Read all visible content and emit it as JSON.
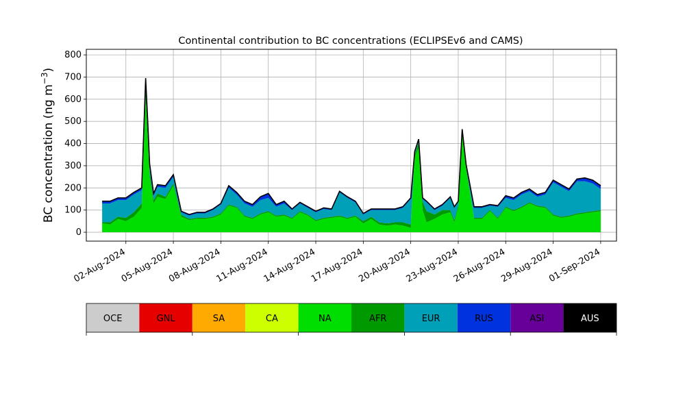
{
  "chart_data": {
    "type": "area",
    "stacked": true,
    "title": "Continental contribution to BC concentrations (ECLIPSEv6 and CAMS)",
    "ylabel": "BC concentration (ng m",
    "ylabel_sup": "−3",
    "ylabel_close": ")",
    "xlabel": "",
    "ylim": [
      -40,
      825
    ],
    "yticks": [
      0,
      100,
      200,
      300,
      400,
      500,
      600,
      700,
      800
    ],
    "xlim": [
      "2024-07-30T12:00",
      "2024-09-02T00:00"
    ],
    "x_ticks": [
      "2024-08-02",
      "2024-08-05",
      "2024-08-08",
      "2024-08-11",
      "2024-08-14",
      "2024-08-17",
      "2024-08-20",
      "2024-08-23",
      "2024-08-26",
      "2024-08-29",
      "2024-09-01"
    ],
    "x_tick_labels": [
      "02-Aug-2024",
      "05-Aug-2024",
      "08-Aug-2024",
      "11-Aug-2024",
      "14-Aug-2024",
      "17-Aug-2024",
      "20-Aug-2024",
      "23-Aug-2024",
      "26-Aug-2024",
      "29-Aug-2024",
      "01-Sep-2024"
    ],
    "grid": true,
    "x": [
      "2024-07-31T12:00",
      "2024-08-01T00:00",
      "2024-08-01T12:00",
      "2024-08-02T00:00",
      "2024-08-02T12:00",
      "2024-08-03T00:00",
      "2024-08-03T06:00",
      "2024-08-03T09:00",
      "2024-08-03T12:00",
      "2024-08-03T18:00",
      "2024-08-04T00:00",
      "2024-08-04T12:00",
      "2024-08-05T00:00",
      "2024-08-05T12:00",
      "2024-08-06T00:00",
      "2024-08-06T12:00",
      "2024-08-07T00:00",
      "2024-08-07T12:00",
      "2024-08-08T00:00",
      "2024-08-08T12:00",
      "2024-08-09T00:00",
      "2024-08-09T12:00",
      "2024-08-10T00:00",
      "2024-08-10T12:00",
      "2024-08-11T00:00",
      "2024-08-11T12:00",
      "2024-08-12T00:00",
      "2024-08-12T12:00",
      "2024-08-13T00:00",
      "2024-08-13T12:00",
      "2024-08-14T00:00",
      "2024-08-14T12:00",
      "2024-08-15T00:00",
      "2024-08-15T12:00",
      "2024-08-16T00:00",
      "2024-08-16T12:00",
      "2024-08-17T00:00",
      "2024-08-17T12:00",
      "2024-08-18T00:00",
      "2024-08-18T12:00",
      "2024-08-19T00:00",
      "2024-08-19T12:00",
      "2024-08-20T00:00",
      "2024-08-20T06:00",
      "2024-08-20T12:00",
      "2024-08-20T18:00",
      "2024-08-21T00:00",
      "2024-08-21T12:00",
      "2024-08-22T00:00",
      "2024-08-22T12:00",
      "2024-08-22T18:00",
      "2024-08-23T00:00",
      "2024-08-23T06:00",
      "2024-08-23T12:00",
      "2024-08-24T00:00",
      "2024-08-24T12:00",
      "2024-08-25T00:00",
      "2024-08-25T12:00",
      "2024-08-26T00:00",
      "2024-08-26T12:00",
      "2024-08-27T00:00",
      "2024-08-27T12:00",
      "2024-08-28T00:00",
      "2024-08-28T12:00",
      "2024-08-29T00:00",
      "2024-08-29T12:00",
      "2024-08-30T00:00",
      "2024-08-30T12:00",
      "2024-08-31T00:00",
      "2024-08-31T12:00",
      "2024-09-01T00:00"
    ],
    "series": [
      {
        "name": "OCE",
        "color": "#cccccc",
        "values": [
          0,
          0,
          0,
          0,
          0,
          0,
          0,
          0,
          0,
          0,
          0,
          0,
          0,
          0,
          0,
          0,
          0,
          0,
          0,
          0,
          0,
          0,
          0,
          0,
          0,
          0,
          0,
          0,
          0,
          0,
          0,
          0,
          0,
          0,
          0,
          0,
          0,
          0,
          0,
          0,
          0,
          0,
          0,
          0,
          0,
          0,
          0,
          0,
          0,
          0,
          0,
          0,
          0,
          0,
          0,
          0,
          0,
          0,
          0,
          0,
          0,
          0,
          0,
          0,
          0,
          0,
          0,
          0,
          0,
          0,
          0
        ]
      },
      {
        "name": "GNL",
        "color": "#e60000",
        "values": [
          0,
          0,
          0,
          0,
          0,
          0,
          0,
          0,
          0,
          0,
          0,
          0,
          0,
          0,
          0,
          0,
          0,
          0,
          0,
          0,
          0,
          0,
          0,
          0,
          0,
          0,
          0,
          0,
          0,
          0,
          0,
          0,
          0,
          0,
          0,
          0,
          0,
          0,
          0,
          0,
          0,
          0,
          0,
          0,
          0,
          0,
          0,
          0,
          0,
          0,
          0,
          0,
          0,
          0,
          0,
          0,
          0,
          0,
          0,
          0,
          0,
          0,
          0,
          0,
          0,
          0,
          0,
          0,
          0,
          0,
          0
        ]
      },
      {
        "name": "SA",
        "color": "#ffaa00",
        "values": [
          0,
          0,
          0,
          0,
          0,
          0,
          0,
          0,
          0,
          0,
          0,
          0,
          0,
          0,
          0,
          0,
          0,
          0,
          0,
          0,
          0,
          0,
          0,
          0,
          0,
          0,
          0,
          0,
          0,
          0,
          0,
          0,
          0,
          0,
          0,
          0,
          0,
          0,
          0,
          0,
          0,
          0,
          0,
          0,
          0,
          0,
          0,
          0,
          0,
          0,
          0,
          0,
          0,
          0,
          0,
          0,
          0,
          0,
          0,
          0,
          0,
          0,
          0,
          0,
          0,
          0,
          0,
          0,
          0,
          0,
          0
        ]
      },
      {
        "name": "CA",
        "color": "#ccff00",
        "values": [
          0,
          0,
          0,
          0,
          0,
          0,
          0,
          0,
          0,
          0,
          0,
          0,
          0,
          0,
          0,
          0,
          0,
          0,
          0,
          0,
          0,
          0,
          0,
          0,
          0,
          0,
          0,
          0,
          0,
          0,
          0,
          0,
          0,
          0,
          0,
          0,
          0,
          0,
          0,
          0,
          0,
          0,
          0,
          0,
          0,
          0,
          0,
          0,
          0,
          0,
          0,
          0,
          0,
          0,
          0,
          0,
          0,
          0,
          0,
          0,
          0,
          0,
          0,
          0,
          0,
          0,
          0,
          0,
          0,
          0,
          0
        ]
      },
      {
        "name": "NA",
        "color": "#00dd00",
        "values": [
          40,
          35,
          60,
          50,
          70,
          110,
          600,
          430,
          250,
          130,
          160,
          150,
          210,
          70,
          55,
          60,
          60,
          65,
          80,
          120,
          110,
          70,
          60,
          80,
          90,
          70,
          75,
          60,
          90,
          75,
          50,
          60,
          65,
          70,
          60,
          70,
          40,
          60,
          35,
          30,
          35,
          30,
          20,
          340,
          380,
          100,
          45,
          60,
          80,
          90,
          45,
          110,
          440,
          280,
          60,
          60,
          95,
          60,
          110,
          95,
          110,
          130,
          115,
          110,
          75,
          65,
          70,
          80,
          85,
          90,
          95
        ]
      },
      {
        "name": "AFR",
        "color": "#009900",
        "values": [
          5,
          10,
          10,
          15,
          20,
          20,
          40,
          30,
          20,
          15,
          15,
          10,
          10,
          8,
          5,
          5,
          5,
          5,
          5,
          5,
          5,
          5,
          5,
          5,
          5,
          5,
          5,
          5,
          5,
          5,
          5,
          5,
          5,
          5,
          5,
          5,
          10,
          10,
          10,
          10,
          10,
          15,
          15,
          10,
          25,
          40,
          50,
          20,
          20,
          10,
          10,
          10,
          10,
          10,
          5,
          5,
          5,
          5,
          5,
          5,
          5,
          5,
          5,
          5,
          5,
          5,
          5,
          5,
          5,
          5,
          5
        ]
      },
      {
        "name": "EUR",
        "color": "#00a0b8",
        "values": [
          85,
          85,
          75,
          80,
          80,
          60,
          45,
          40,
          30,
          20,
          30,
          40,
          30,
          12,
          15,
          20,
          20,
          30,
          40,
          75,
          55,
          55,
          50,
          60,
          60,
          40,
          50,
          35,
          35,
          30,
          35,
          40,
          30,
          105,
          90,
          60,
          30,
          30,
          55,
          60,
          55,
          65,
          115,
          10,
          10,
          10,
          40,
          20,
          20,
          55,
          55,
          15,
          10,
          10,
          45,
          45,
          20,
          50,
          40,
          45,
          55,
          50,
          40,
          55,
          145,
          135,
          110,
          145,
          140,
          125,
          95
        ]
      },
      {
        "name": "RUS",
        "color": "#0033dd",
        "values": [
          10,
          10,
          10,
          10,
          10,
          10,
          10,
          10,
          10,
          10,
          10,
          10,
          10,
          5,
          5,
          5,
          5,
          5,
          5,
          10,
          10,
          10,
          10,
          15,
          20,
          10,
          10,
          5,
          5,
          5,
          5,
          5,
          5,
          5,
          5,
          5,
          5,
          5,
          5,
          5,
          5,
          5,
          5,
          5,
          5,
          5,
          5,
          5,
          5,
          5,
          5,
          5,
          5,
          5,
          5,
          5,
          5,
          5,
          10,
          10,
          10,
          10,
          10,
          10,
          10,
          10,
          10,
          10,
          15,
          15,
          15
        ]
      },
      {
        "name": "ASI",
        "color": "#660099",
        "values": [
          0,
          0,
          0,
          0,
          0,
          0,
          0,
          0,
          0,
          0,
          0,
          0,
          0,
          0,
          0,
          0,
          0,
          0,
          0,
          0,
          0,
          0,
          0,
          0,
          0,
          0,
          0,
          0,
          0,
          0,
          0,
          0,
          0,
          0,
          0,
          0,
          0,
          0,
          0,
          0,
          0,
          0,
          0,
          0,
          0,
          0,
          0,
          0,
          0,
          0,
          0,
          0,
          0,
          0,
          0,
          0,
          0,
          0,
          0,
          0,
          0,
          0,
          0,
          0,
          0,
          0,
          0,
          0,
          0,
          0,
          0
        ]
      },
      {
        "name": "AUS",
        "color": "#000000",
        "values": [
          0,
          0,
          0,
          0,
          0,
          0,
          0,
          0,
          0,
          0,
          0,
          0,
          0,
          0,
          0,
          0,
          0,
          0,
          0,
          0,
          0,
          0,
          0,
          0,
          0,
          0,
          0,
          0,
          0,
          0,
          0,
          0,
          0,
          0,
          0,
          0,
          0,
          0,
          0,
          0,
          0,
          0,
          0,
          0,
          0,
          0,
          0,
          0,
          0,
          0,
          0,
          0,
          0,
          0,
          0,
          0,
          0,
          0,
          0,
          0,
          0,
          0,
          0,
          0,
          0,
          0,
          0,
          0,
          0,
          0,
          0
        ]
      }
    ]
  }
}
